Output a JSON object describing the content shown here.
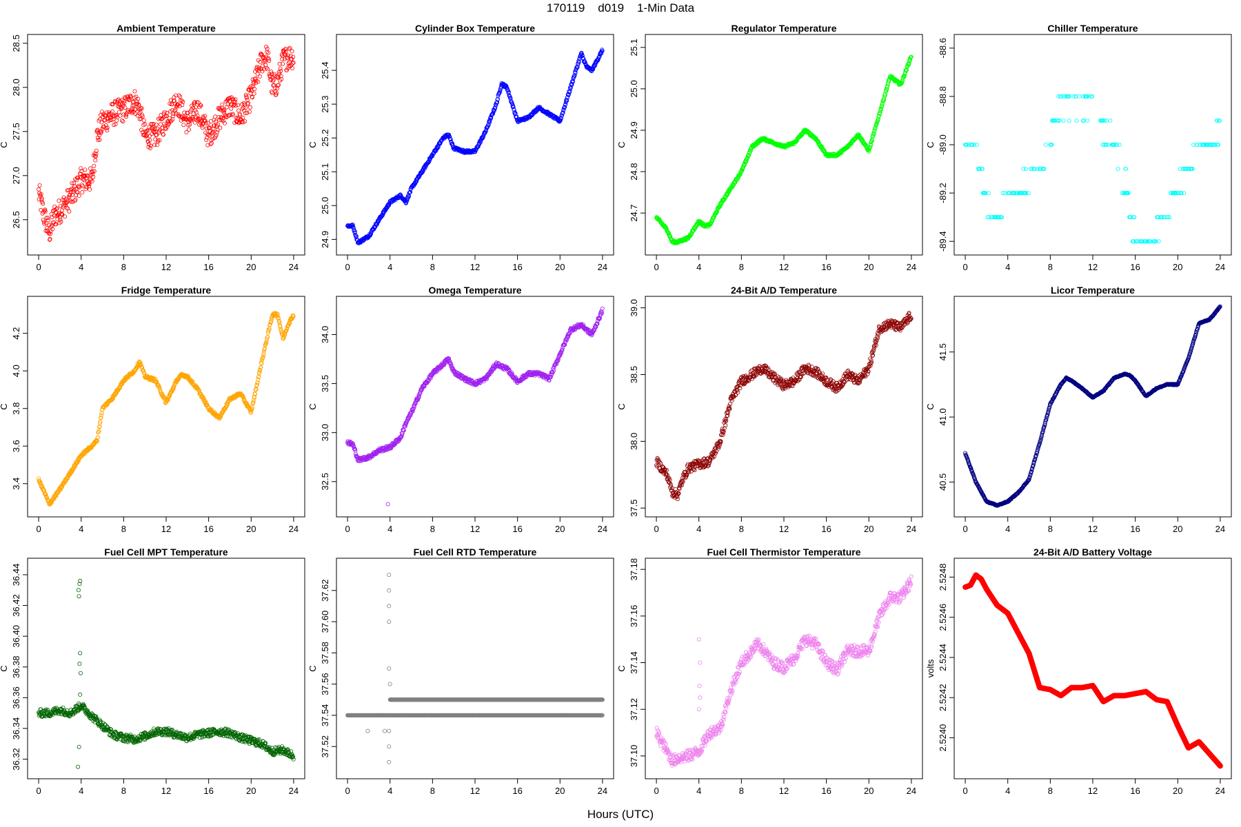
{
  "page": {
    "title": "170119    d019    1-Min Data",
    "x_caption": "Hours (UTC)"
  },
  "chart_data": [
    {
      "type": "scatter",
      "title": "Ambient Temperature",
      "ylabel": "C",
      "color": "#ff0000",
      "xlim": [
        0,
        24
      ],
      "ylim": [
        26.2,
        28.5
      ],
      "xticks": [
        0,
        4,
        8,
        12,
        16,
        20,
        24
      ],
      "yticks": [
        26.5,
        27.0,
        27.5,
        28.0,
        28.5
      ],
      "ytick_labels": [
        "26.5",
        "27.0",
        "27.5",
        "28.0",
        "28.5"
      ],
      "noise": 0.14,
      "x": [
        0,
        0.5,
        1,
        1.5,
        2,
        3,
        4,
        5,
        5.5,
        6,
        7,
        8,
        9,
        9.5,
        10,
        11,
        12,
        13,
        14,
        15,
        16,
        17,
        18,
        19,
        20,
        21,
        21.5,
        22,
        22.5,
        23,
        23.5,
        24
      ],
      "y": [
        26.8,
        26.55,
        26.35,
        26.55,
        26.6,
        26.75,
        26.95,
        26.95,
        27.45,
        27.6,
        27.7,
        27.75,
        27.85,
        27.75,
        27.45,
        27.45,
        27.65,
        27.85,
        27.6,
        27.75,
        27.45,
        27.65,
        27.8,
        27.65,
        27.9,
        28.3,
        28.35,
        28.0,
        28.05,
        28.3,
        28.35,
        28.35
      ]
    },
    {
      "type": "scatter",
      "title": "Cylinder Box Temperature",
      "ylabel": "C",
      "color": "#0000ff",
      "xlim": [
        0,
        24
      ],
      "ylim": [
        24.88,
        25.48
      ],
      "xticks": [
        0,
        4,
        8,
        12,
        16,
        20,
        24
      ],
      "yticks": [
        24.9,
        25.0,
        25.1,
        25.2,
        25.3,
        25.4
      ],
      "ytick_labels": [
        "24.9",
        "25.0",
        "25.1",
        "25.2",
        "25.3",
        "25.4"
      ],
      "noise": 0.004,
      "x": [
        0,
        0.5,
        1,
        1.5,
        2,
        3,
        4,
        5,
        5.5,
        6,
        7,
        8,
        9,
        9.5,
        10,
        11,
        12,
        13,
        14,
        14.5,
        15,
        16,
        17,
        18,
        19,
        20,
        21,
        22,
        22.5,
        23,
        24
      ],
      "y": [
        24.94,
        24.94,
        24.89,
        24.9,
        24.91,
        24.96,
        25.01,
        25.03,
        25.01,
        25.05,
        25.1,
        25.15,
        25.2,
        25.21,
        25.17,
        25.16,
        25.16,
        25.22,
        25.3,
        25.36,
        25.35,
        25.25,
        25.26,
        25.29,
        25.27,
        25.25,
        25.35,
        25.45,
        25.41,
        25.4,
        25.46
      ]
    },
    {
      "type": "scatter",
      "title": "Regulator Temperature",
      "ylabel": "C",
      "color": "#00ff00",
      "xlim": [
        0,
        24
      ],
      "ylim": [
        24.62,
        25.11
      ],
      "xticks": [
        0,
        4,
        8,
        12,
        16,
        20,
        24
      ],
      "yticks": [
        24.7,
        24.8,
        24.9,
        25.0,
        25.1
      ],
      "ytick_labels": [
        "24.7",
        "24.8",
        "24.9",
        "25.0",
        "25.1"
      ],
      "noise": 0.003,
      "x": [
        0,
        1,
        1.5,
        2,
        3,
        4,
        4.5,
        5,
        6,
        7,
        8,
        9,
        10,
        11,
        12,
        13,
        14,
        15,
        16,
        17,
        18,
        19,
        20,
        21,
        22,
        23,
        24
      ],
      "y": [
        24.69,
        24.66,
        24.63,
        24.63,
        24.64,
        24.68,
        24.67,
        24.67,
        24.72,
        24.76,
        24.8,
        24.86,
        24.88,
        24.87,
        24.86,
        24.87,
        24.9,
        24.88,
        24.84,
        24.84,
        24.86,
        24.89,
        24.85,
        24.94,
        25.03,
        25.01,
        25.08
      ]
    },
    {
      "type": "scatter",
      "title": "Chiller Temperature",
      "ylabel": "C",
      "color": "#00ffff",
      "xlim": [
        0,
        24
      ],
      "ylim": [
        -89.42,
        -88.58
      ],
      "xticks": [
        0,
        4,
        8,
        12,
        16,
        20,
        24
      ],
      "yticks": [
        -89.4,
        -89.2,
        -89.0,
        -88.8,
        -88.6
      ],
      "ytick_labels": [
        "-89.4",
        "-89.2",
        "-89.0",
        "-88.8",
        "-88.6"
      ],
      "quantize": 0.1,
      "noise": 0.04,
      "x": [
        0,
        1,
        2,
        3,
        4,
        5,
        6,
        7,
        8,
        9,
        10,
        11,
        12,
        13,
        14,
        15,
        16,
        17,
        18,
        19,
        20,
        21,
        22,
        23,
        24
      ],
      "y": [
        -89.0,
        -89.05,
        -89.25,
        -89.3,
        -89.2,
        -89.2,
        -89.15,
        -89.1,
        -89.0,
        -88.85,
        -88.85,
        -88.85,
        -88.8,
        -88.95,
        -89.0,
        -89.15,
        -89.4,
        -89.4,
        -89.35,
        -89.25,
        -89.2,
        -89.1,
        -89.0,
        -89.0,
        -88.92
      ]
    },
    {
      "type": "scatter",
      "title": "Fridge Temperature",
      "ylabel": "C",
      "color": "#ffa500",
      "xlim": [
        0,
        24
      ],
      "ylim": [
        3.27,
        4.35
      ],
      "xticks": [
        0,
        4,
        8,
        12,
        16,
        20,
        24
      ],
      "yticks": [
        3.4,
        3.6,
        3.8,
        4.0,
        4.2
      ],
      "ytick_labels": [
        "3.4",
        "3.6",
        "3.8",
        "4.0",
        "4.2"
      ],
      "noise": 0.008,
      "x": [
        0,
        0.5,
        1,
        1.5,
        2,
        3,
        4,
        5,
        5.5,
        6,
        7,
        8,
        9,
        9.5,
        10,
        11,
        12,
        13,
        13.5,
        14,
        15,
        16,
        17,
        18,
        19,
        20,
        21,
        22,
        22.5,
        23,
        23.5,
        24
      ],
      "y": [
        3.42,
        3.36,
        3.29,
        3.33,
        3.37,
        3.46,
        3.55,
        3.6,
        3.63,
        3.8,
        3.86,
        3.95,
        4.0,
        4.05,
        3.97,
        3.95,
        3.83,
        3.95,
        3.98,
        3.97,
        3.9,
        3.8,
        3.75,
        3.85,
        3.88,
        3.78,
        4.05,
        4.3,
        4.3,
        4.17,
        4.25,
        4.3
      ]
    },
    {
      "type": "scatter",
      "title": "Omega Temperature",
      "ylabel": "C",
      "color": "#a020f0",
      "xlim": [
        0,
        24
      ],
      "ylim": [
        32.23,
        34.3
      ],
      "xticks": [
        0,
        4,
        8,
        12,
        16,
        20,
        24
      ],
      "yticks": [
        32.5,
        33.0,
        33.5,
        34.0
      ],
      "ytick_labels": [
        "32.5",
        "33.0",
        "33.5",
        "34.0"
      ],
      "noise": 0.02,
      "x": [
        0,
        0.5,
        1,
        2,
        3,
        4,
        5,
        5.5,
        6,
        7,
        8,
        9,
        9.5,
        10,
        11,
        12,
        13,
        14,
        15,
        16,
        17,
        18,
        19,
        20,
        21,
        22,
        23,
        24
      ],
      "y": [
        32.9,
        32.88,
        32.72,
        32.75,
        32.82,
        32.85,
        32.95,
        33.1,
        33.2,
        33.45,
        33.6,
        33.7,
        33.75,
        33.62,
        33.55,
        33.5,
        33.55,
        33.7,
        33.65,
        33.52,
        33.6,
        33.6,
        33.55,
        33.8,
        34.05,
        34.1,
        34.0,
        34.25
      ],
      "outliers": [
        [
          3.8,
          32.27
        ]
      ]
    },
    {
      "type": "scatter",
      "title": "24-Bit A/D Temperature",
      "ylabel": "C",
      "color": "#8b0000",
      "xlim": [
        0,
        24
      ],
      "ylim": [
        37.5,
        39.02
      ],
      "xticks": [
        0,
        4,
        8,
        12,
        16,
        20,
        24
      ],
      "yticks": [
        37.5,
        38.0,
        38.5,
        39.0
      ],
      "ytick_labels": [
        "37.5",
        "38.0",
        "38.5",
        "39.0"
      ],
      "noise": 0.035,
      "x": [
        0,
        1,
        1.5,
        2,
        2.5,
        3,
        4,
        5,
        6,
        7,
        8,
        9,
        10,
        11,
        12,
        13,
        14,
        15,
        16,
        17,
        18,
        19,
        20,
        21,
        22,
        23,
        24
      ],
      "y": [
        37.85,
        37.75,
        37.62,
        37.6,
        37.72,
        37.8,
        37.83,
        37.85,
        38.0,
        38.3,
        38.45,
        38.5,
        38.55,
        38.48,
        38.42,
        38.45,
        38.55,
        38.52,
        38.45,
        38.4,
        38.5,
        38.45,
        38.55,
        38.85,
        38.88,
        38.85,
        38.95
      ]
    },
    {
      "type": "scatter",
      "title": "Licor Temperature",
      "ylabel": "C",
      "color": "#000080",
      "xlim": [
        0,
        24
      ],
      "ylim": [
        40.3,
        41.86
      ],
      "xticks": [
        0,
        4,
        8,
        12,
        16,
        20,
        24
      ],
      "yticks": [
        40.5,
        41.0,
        41.5
      ],
      "ytick_labels": [
        "40.5",
        "41.0",
        "41.5"
      ],
      "noise": 0.004,
      "x": [
        0,
        1,
        2,
        3,
        4,
        5,
        6,
        7,
        8,
        9,
        9.5,
        10,
        11,
        12,
        13,
        14,
        15,
        15.5,
        16,
        17,
        18,
        19,
        20,
        21,
        22,
        23,
        24
      ],
      "y": [
        40.72,
        40.5,
        40.35,
        40.32,
        40.35,
        40.42,
        40.52,
        40.8,
        41.1,
        41.25,
        41.3,
        41.28,
        41.22,
        41.15,
        41.2,
        41.3,
        41.33,
        41.32,
        41.28,
        41.16,
        41.22,
        41.25,
        41.25,
        41.45,
        41.72,
        41.75,
        41.85
      ]
    },
    {
      "type": "scatter",
      "title": "Fuel Cell MPT Temperature",
      "ylabel": "C",
      "color": "#006400",
      "xlim": [
        0,
        24
      ],
      "ylim": [
        36.313,
        36.445
      ],
      "xticks": [
        0,
        4,
        8,
        12,
        16,
        20,
        24
      ],
      "yticks": [
        36.32,
        36.34,
        36.36,
        36.38,
        36.4,
        36.42,
        36.44
      ],
      "ytick_labels": [
        "36.32",
        "36.34",
        "36.36",
        "36.38",
        "36.40",
        "36.42",
        "36.44"
      ],
      "noise": 0.0025,
      "x": [
        0,
        1,
        2,
        3,
        4,
        5,
        6,
        7,
        8,
        9,
        10,
        11,
        12,
        13,
        14,
        15,
        16,
        17,
        18,
        19,
        20,
        21,
        22,
        23,
        24
      ],
      "y": [
        36.35,
        36.35,
        36.352,
        36.35,
        36.355,
        36.348,
        36.342,
        36.336,
        36.334,
        36.333,
        36.335,
        36.338,
        36.338,
        36.336,
        36.334,
        36.336,
        36.337,
        36.338,
        36.337,
        36.334,
        36.332,
        36.33,
        36.325,
        36.326,
        36.322
      ],
      "outliers": [
        [
          3.7,
          36.315
        ],
        [
          3.8,
          36.328
        ],
        [
          3.9,
          36.362
        ],
        [
          3.85,
          36.382
        ],
        [
          3.9,
          36.389
        ],
        [
          3.75,
          36.43
        ],
        [
          3.8,
          36.426
        ],
        [
          3.85,
          36.434
        ],
        [
          3.9,
          36.436
        ],
        [
          3.95,
          36.376
        ]
      ]
    },
    {
      "type": "scatter",
      "title": "Fuel Cell RTD Temperature",
      "ylabel": "C",
      "color": "#808080",
      "xlim": [
        0,
        24
      ],
      "ylim": [
        37.505,
        37.635
      ],
      "xticks": [
        0,
        4,
        8,
        12,
        16,
        20,
        24
      ],
      "yticks": [
        37.52,
        37.54,
        37.56,
        37.58,
        37.6,
        37.62
      ],
      "ytick_labels": [
        "37.52",
        "37.54",
        "37.56",
        "37.58",
        "37.60",
        "37.62"
      ],
      "discrete": [
        {
          "value": 37.54,
          "from": 0,
          "to": 24,
          "density": 0.7
        },
        {
          "value": 37.55,
          "from": 4,
          "to": 24,
          "density": 0.95
        }
      ],
      "outliers": [
        [
          1.9,
          37.53
        ],
        [
          3.5,
          37.53
        ],
        [
          3.9,
          37.51
        ],
        [
          3.9,
          37.52
        ],
        [
          3.9,
          37.53
        ],
        [
          3.9,
          37.57
        ],
        [
          3.9,
          37.6
        ],
        [
          3.9,
          37.61
        ],
        [
          3.9,
          37.62
        ],
        [
          3.9,
          37.63
        ],
        [
          4.0,
          37.56
        ]
      ]
    },
    {
      "type": "scatter",
      "title": "Fuel Cell Thermistor Temperature",
      "ylabel": "C",
      "color": "#ee82ee",
      "xlim": [
        0,
        24
      ],
      "ylim": [
        37.094,
        37.181
      ],
      "xticks": [
        0,
        4,
        8,
        12,
        16,
        20,
        24
      ],
      "yticks": [
        37.1,
        37.12,
        37.14,
        37.16,
        37.18
      ],
      "ytick_labels": [
        "37.10",
        "37.12",
        "37.14",
        "37.16",
        "37.18"
      ],
      "noise": 0.0025,
      "x": [
        0,
        1,
        1.5,
        2,
        3,
        4,
        5,
        6,
        7,
        8,
        9,
        9.5,
        10,
        11,
        12,
        13,
        14,
        15,
        16,
        17,
        18,
        19,
        20,
        21,
        22,
        23,
        24
      ],
      "y": [
        37.11,
        37.102,
        37.098,
        37.099,
        37.1,
        37.102,
        37.11,
        37.112,
        37.128,
        37.14,
        37.145,
        37.148,
        37.146,
        37.14,
        37.138,
        37.142,
        37.15,
        37.148,
        37.14,
        37.137,
        37.145,
        37.145,
        37.145,
        37.16,
        37.168,
        37.168,
        37.175
      ],
      "outliers": [
        [
          4.0,
          37.15
        ],
        [
          4.1,
          37.14
        ],
        [
          4.05,
          37.13
        ],
        [
          4.1,
          37.125
        ],
        [
          4.0,
          37.12
        ]
      ]
    },
    {
      "type": "line",
      "title": "24-Bit A/D Battery Voltage",
      "ylabel": "volts",
      "color": "#ff0000",
      "xlim": [
        0,
        24
      ],
      "ylim": [
        2.52384,
        2.52485
      ],
      "xticks": [
        0,
        4,
        8,
        12,
        16,
        20,
        24
      ],
      "yticks": [
        2.524,
        2.5242,
        2.5244,
        2.5246,
        2.5248
      ],
      "ytick_labels": [
        "2.5240",
        "2.5242",
        "2.5244",
        "2.5246",
        "2.5248"
      ],
      "x": [
        0,
        0.5,
        1,
        1.5,
        2,
        3,
        4,
        5,
        6,
        7,
        8,
        9,
        10,
        11,
        12,
        13,
        14,
        15,
        16,
        17,
        18,
        19,
        20,
        21,
        22,
        23,
        24
      ],
      "y": [
        2.52475,
        2.52476,
        2.52481,
        2.52479,
        2.52474,
        2.52466,
        2.52462,
        2.52452,
        2.52442,
        2.52425,
        2.52424,
        2.52421,
        2.52425,
        2.52425,
        2.52426,
        2.52418,
        2.52421,
        2.52421,
        2.52422,
        2.52423,
        2.52419,
        2.52418,
        2.52406,
        2.52395,
        2.52398,
        2.52392,
        2.52386
      ]
    }
  ]
}
